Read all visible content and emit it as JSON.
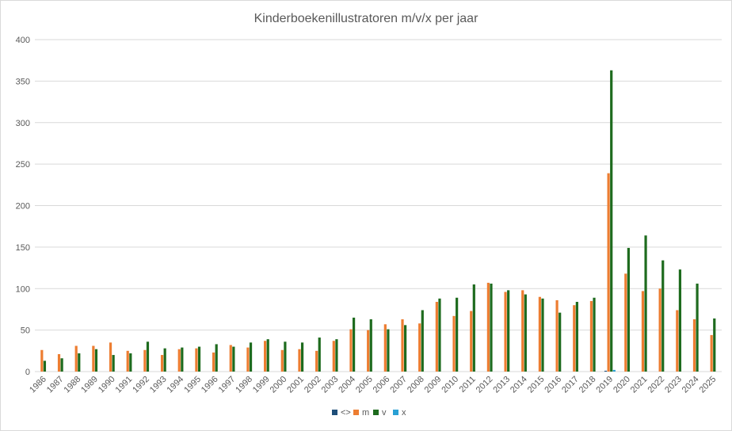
{
  "chart_data": {
    "type": "bar",
    "title": "Kinderboekenillustratoren m/v/x per jaar",
    "xlabel": "",
    "ylabel": "",
    "ylim": [
      0,
      400
    ],
    "yticks": [
      0,
      50,
      100,
      150,
      200,
      250,
      300,
      350,
      400
    ],
    "grid": true,
    "legend_position": "bottom",
    "categories": [
      "1986",
      "1987",
      "1988",
      "1989",
      "1990",
      "1991",
      "1992",
      "1993",
      "1994",
      "1995",
      "1996",
      "1997",
      "1998",
      "1999",
      "2000",
      "2001",
      "2002",
      "2003",
      "2004",
      "2005",
      "2006",
      "2007",
      "2008",
      "2009",
      "2010",
      "2011",
      "2012",
      "2013",
      "2014",
      "2015",
      "2016",
      "2017",
      "2018",
      "2019",
      "2020",
      "2021",
      "2022",
      "2023",
      "2024",
      "2025"
    ],
    "series": [
      {
        "name": "<>",
        "color": "#1f4e79",
        "values": [
          0,
          0,
          0,
          0,
          0,
          0,
          0,
          0,
          0,
          0,
          0,
          0,
          0,
          0,
          0,
          0,
          0,
          0,
          0,
          0,
          0,
          0,
          0,
          0,
          0,
          0,
          0,
          0,
          0,
          0,
          0,
          0,
          0,
          1,
          0,
          0,
          0,
          0,
          0,
          0
        ]
      },
      {
        "name": "m",
        "color": "#ed7d31",
        "values": [
          26,
          21,
          31,
          31,
          35,
          25,
          26,
          20,
          27,
          28,
          23,
          32,
          29,
          37,
          26,
          27,
          25,
          37,
          51,
          50,
          57,
          63,
          58,
          84,
          67,
          73,
          107,
          96,
          98,
          90,
          86,
          80,
          85,
          239,
          118,
          97,
          100,
          74,
          63,
          44
        ]
      },
      {
        "name": "v",
        "color": "#1e6b1e",
        "values": [
          13,
          16,
          22,
          27,
          20,
          22,
          36,
          28,
          29,
          30,
          33,
          30,
          35,
          39,
          36,
          35,
          41,
          39,
          65,
          63,
          51,
          56,
          74,
          88,
          89,
          105,
          106,
          98,
          93,
          88,
          71,
          84,
          89,
          363,
          149,
          164,
          134,
          123,
          106,
          64
        ]
      },
      {
        "name": "x",
        "color": "#2aa0d4",
        "values": [
          0,
          0,
          0,
          0,
          0,
          0,
          0,
          0,
          0,
          0,
          0,
          0,
          0,
          0,
          0,
          0,
          0,
          0,
          0,
          0,
          0,
          0,
          0,
          0,
          0,
          0,
          0,
          0,
          0,
          0,
          0,
          0,
          0,
          2,
          0,
          0,
          0,
          0,
          0,
          0
        ]
      }
    ]
  }
}
